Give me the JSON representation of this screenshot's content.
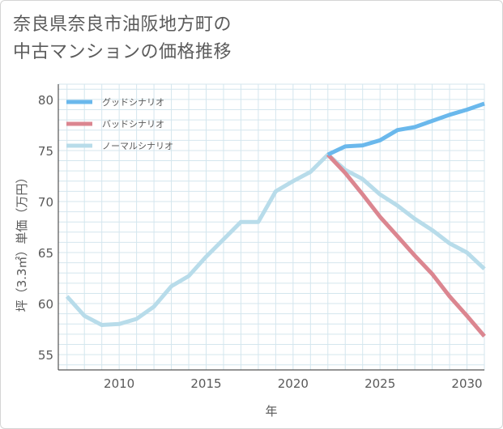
{
  "title_lines": [
    "奈良県奈良市油阪地方町の",
    "中古マンションの価格推移"
  ],
  "colors": {
    "good": "#6ab8ec",
    "bad": "#db8690",
    "normal": "#b8dcea",
    "grid": "#d4e6ee",
    "axis": "#555555"
  },
  "chart_data": {
    "type": "line",
    "title": "奈良県奈良市油阪地方町の中古マンションの価格推移",
    "xlabel": "年",
    "ylabel": "坪（3.3㎡）単価（万円）",
    "xlim": [
      2006.5,
      2031
    ],
    "ylim": [
      53.5,
      81.5
    ],
    "xticks": [
      2010,
      2015,
      2020,
      2025,
      2030
    ],
    "yticks": [
      55,
      60,
      65,
      70,
      75,
      80
    ],
    "grid": true,
    "legend_position": "top-left",
    "series": [
      {
        "name": "グッドシナリオ",
        "color_key": "good",
        "x": [
          2022,
          2023,
          2024,
          2025,
          2026,
          2027,
          2028,
          2029,
          2030,
          2031
        ],
        "y": [
          74.6,
          75.4,
          75.5,
          76.0,
          77.0,
          77.3,
          77.9,
          78.5,
          79.0,
          79.6
        ]
      },
      {
        "name": "バッドシナリオ",
        "color_key": "bad",
        "x": [
          2022,
          2023,
          2024,
          2025,
          2026,
          2027,
          2028,
          2029,
          2030,
          2031
        ],
        "y": [
          74.6,
          72.8,
          70.7,
          68.5,
          66.6,
          64.7,
          62.9,
          60.7,
          58.8,
          56.8
        ]
      },
      {
        "name": "ノーマルシナリオ",
        "color_key": "normal",
        "x": [
          2007,
          2008,
          2009,
          2010,
          2011,
          2012,
          2013,
          2014,
          2015,
          2016,
          2017,
          2018,
          2019,
          2020,
          2021,
          2022,
          2023,
          2024,
          2025,
          2026,
          2027,
          2028,
          2029,
          2030,
          2031
        ],
        "y": [
          60.7,
          58.8,
          57.9,
          58.0,
          58.5,
          59.7,
          61.7,
          62.7,
          64.6,
          66.3,
          68.0,
          68.0,
          71.0,
          72.0,
          72.9,
          74.6,
          73.1,
          72.2,
          70.7,
          69.6,
          68.3,
          67.2,
          65.9,
          65.0,
          63.4
        ]
      }
    ]
  }
}
